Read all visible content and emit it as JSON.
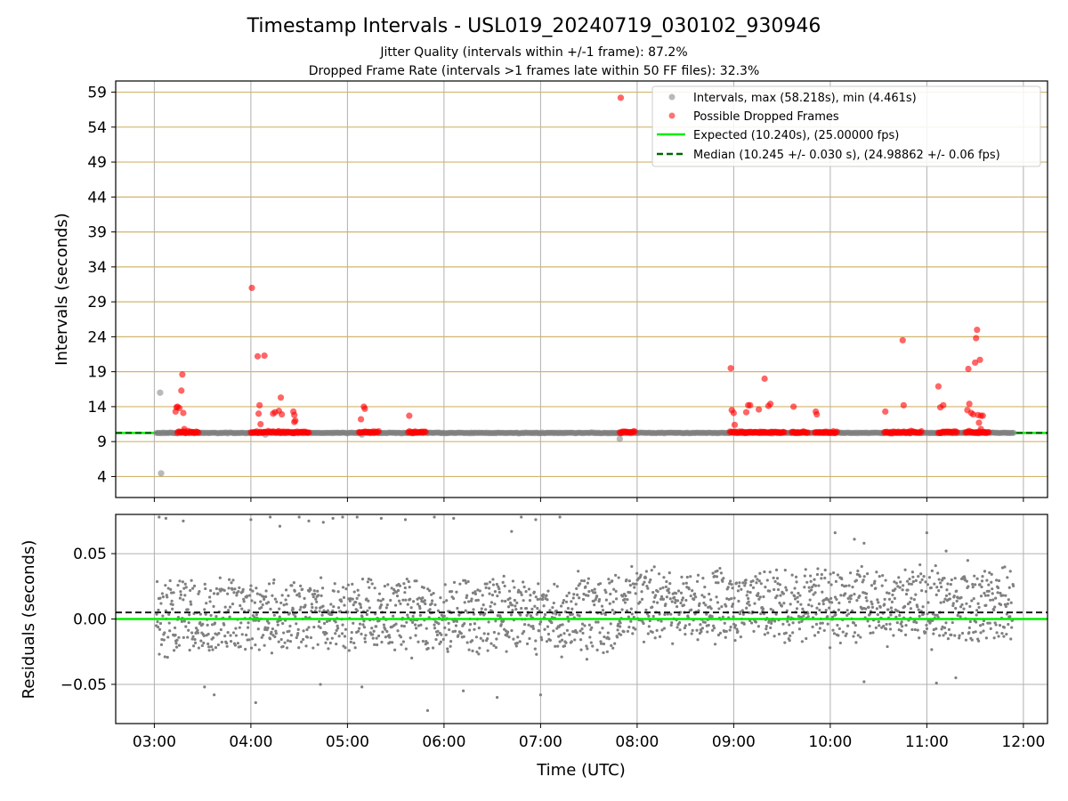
{
  "chart_data": [
    {
      "type": "scatter",
      "title": "Timestamp Intervals - USL019_20240719_030102_930946",
      "subtitles": [
        "Jitter Quality (intervals within +/-1 frame): 87.2%",
        "Dropped Frame Rate (intervals >1 frames late within 50 FF files): 32.3%"
      ],
      "xlabel": "",
      "ylabel": "Intervals (seconds)",
      "xlim_hours": [
        2.6,
        12.25
      ],
      "ylim": [
        1,
        60.6
      ],
      "x_tick_hours": [
        3,
        4,
        5,
        6,
        7,
        8,
        9,
        10,
        11,
        12
      ],
      "y_ticks": [
        4,
        9,
        14,
        19,
        24,
        29,
        34,
        39,
        44,
        49,
        54,
        59
      ],
      "y_tick_labels": [
        "4",
        "9",
        "14",
        "19",
        "24",
        "29",
        "34",
        "39",
        "44",
        "49",
        "54",
        "59"
      ],
      "grid": true,
      "legend_position": "top-right",
      "legend": [
        "Intervals, max (58.218s), min (4.461s)",
        "Possible Dropped Frames",
        "Expected (10.240s), (25.00000 fps)",
        "Median (10.245 +/- 0.030 s), (24.98862 +/- 0.06 fps)"
      ],
      "expected_interval": 10.24,
      "median_interval": 10.245,
      "baseline_band_hours": [
        3.02,
        11.9
      ],
      "series": [
        {
          "name": "Intervals, max (58.218s), min (4.461s)",
          "color": "#808080",
          "points": [
            [
              3.06,
              16.0
            ],
            [
              3.07,
              4.46
            ],
            [
              4.15,
              10.0
            ],
            [
              5.15,
              10.0
            ],
            [
              7.82,
              9.4
            ]
          ]
        },
        {
          "name": "Possible Dropped Frames",
          "color": "#ff0000",
          "points": [
            [
              3.22,
              13.3
            ],
            [
              3.24,
              14.0
            ],
            [
              3.26,
              13.8
            ],
            [
              3.28,
              16.3
            ],
            [
              3.29,
              18.6
            ],
            [
              3.3,
              13.1
            ],
            [
              3.23,
              13.9
            ],
            [
              3.31,
              10.8
            ],
            [
              4.01,
              31.0
            ],
            [
              4.07,
              21.2
            ],
            [
              4.09,
              14.2
            ],
            [
              4.08,
              13.0
            ],
            [
              4.1,
              11.5
            ],
            [
              4.14,
              21.3
            ],
            [
              4.23,
              13.0
            ],
            [
              4.25,
              13.2
            ],
            [
              4.29,
              13.4
            ],
            [
              4.31,
              15.3
            ],
            [
              4.32,
              12.9
            ],
            [
              4.44,
              13.3
            ],
            [
              4.45,
              12.8
            ],
            [
              4.46,
              12.0
            ],
            [
              4.45,
              11.8
            ],
            [
              5.14,
              12.2
            ],
            [
              5.17,
              14.0
            ],
            [
              5.18,
              13.7
            ],
            [
              5.64,
              12.7
            ],
            [
              7.83,
              58.2
            ],
            [
              8.97,
              19.5
            ],
            [
              8.98,
              13.5
            ],
            [
              9.0,
              13.1
            ],
            [
              9.01,
              11.4
            ],
            [
              9.13,
              13.2
            ],
            [
              9.15,
              14.2
            ],
            [
              9.17,
              14.2
            ],
            [
              9.26,
              13.6
            ],
            [
              9.32,
              18.0
            ],
            [
              9.36,
              14.1
            ],
            [
              9.38,
              14.4
            ],
            [
              9.62,
              14.0
            ],
            [
              9.85,
              13.3
            ],
            [
              9.86,
              12.9
            ],
            [
              10.57,
              13.3
            ],
            [
              10.75,
              23.5
            ],
            [
              10.76,
              14.2
            ],
            [
              11.12,
              16.9
            ],
            [
              11.14,
              13.9
            ],
            [
              11.17,
              14.2
            ],
            [
              11.42,
              13.5
            ],
            [
              11.43,
              19.4
            ],
            [
              11.44,
              14.4
            ],
            [
              11.46,
              13.1
            ],
            [
              11.48,
              12.9
            ],
            [
              11.5,
              20.3
            ],
            [
              11.51,
              23.8
            ],
            [
              11.52,
              25.0
            ],
            [
              11.55,
              20.7
            ],
            [
              11.53,
              12.8
            ],
            [
              11.56,
              12.7
            ],
            [
              11.58,
              12.7
            ],
            [
              11.54,
              11.7
            ],
            [
              11.56,
              10.8
            ]
          ],
          "dense_clusters_hours": [
            [
              3.24,
              3.46
            ],
            [
              4.0,
              4.6
            ],
            [
              5.12,
              5.33
            ],
            [
              5.63,
              5.82
            ],
            [
              7.82,
              7.98
            ],
            [
              8.96,
              9.53
            ],
            [
              9.6,
              9.78
            ],
            [
              9.84,
              10.08
            ],
            [
              10.56,
              10.95
            ],
            [
              11.12,
              11.32
            ],
            [
              11.4,
              11.65
            ]
          ]
        }
      ]
    },
    {
      "type": "scatter",
      "title": "",
      "xlabel": "Time (UTC)",
      "ylabel": "Residuals (seconds)",
      "xlim_hours": [
        2.6,
        12.25
      ],
      "ylim": [
        -0.08,
        0.08
      ],
      "x_tick_hours": [
        3,
        4,
        5,
        6,
        7,
        8,
        9,
        10,
        11,
        12
      ],
      "x_tick_labels": [
        "03:00",
        "04:00",
        "05:00",
        "06:00",
        "07:00",
        "08:00",
        "09:00",
        "10:00",
        "11:00",
        "12:00"
      ],
      "y_ticks": [
        -0.05,
        0.0,
        0.05
      ],
      "y_tick_labels": [
        "−0.05",
        "0.00",
        "0.05"
      ],
      "grid": true,
      "expected_line": 0.0,
      "median_line": 0.005,
      "residual_range_hours": [
        3.02,
        11.9
      ],
      "series": [
        {
          "name": "",
          "color": "#808080",
          "segments": [
            {
              "x_range": [
                3.02,
                7.8
              ],
              "center": 0.002,
              "spread": 0.026
            },
            {
              "x_range": [
                7.8,
                9.3
              ],
              "center": 0.012,
              "spread": 0.024
            },
            {
              "x_range": [
                9.3,
                11.9
              ],
              "center": 0.011,
              "spread": 0.026
            }
          ],
          "outliers": [
            [
              3.05,
              0.078
            ],
            [
              3.12,
              0.077
            ],
            [
              3.3,
              0.075
            ],
            [
              3.62,
              -0.058
            ],
            [
              4.0,
              0.076
            ],
            [
              4.05,
              -0.064
            ],
            [
              4.2,
              0.078
            ],
            [
              4.3,
              0.071
            ],
            [
              4.5,
              0.078
            ],
            [
              4.6,
              0.075
            ],
            [
              4.75,
              0.074
            ],
            [
              4.85,
              0.077
            ],
            [
              5.1,
              0.078
            ],
            [
              5.15,
              -0.052
            ],
            [
              5.35,
              0.077
            ],
            [
              5.6,
              0.076
            ],
            [
              5.9,
              0.078
            ],
            [
              6.1,
              0.077
            ],
            [
              6.2,
              -0.055
            ],
            [
              6.55,
              -0.06
            ],
            [
              6.8,
              0.078
            ],
            [
              6.95,
              0.076
            ],
            [
              7.0,
              -0.058
            ],
            [
              7.2,
              0.078
            ],
            [
              5.83,
              -0.07
            ],
            [
              3.52,
              -0.052
            ],
            [
              4.95,
              0.078
            ],
            [
              6.7,
              0.067
            ],
            [
              10.05,
              0.066
            ],
            [
              10.25,
              0.061
            ],
            [
              10.35,
              0.058
            ],
            [
              11.0,
              0.066
            ],
            [
              11.2,
              0.052
            ],
            [
              10.35,
              -0.048
            ],
            [
              11.1,
              -0.049
            ],
            [
              11.3,
              -0.045
            ],
            [
              4.72,
              -0.05
            ]
          ]
        }
      ]
    }
  ]
}
